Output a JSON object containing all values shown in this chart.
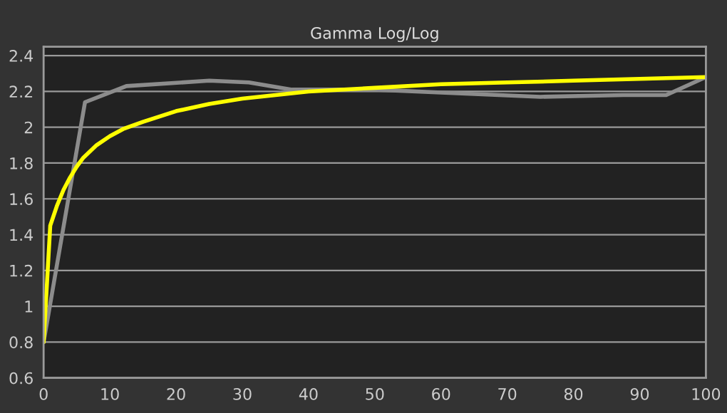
{
  "chart_data": {
    "type": "line",
    "title": "Gamma Log/Log",
    "xlim": [
      0,
      100
    ],
    "xticks": [
      0,
      10,
      20,
      30,
      40,
      50,
      60,
      70,
      80,
      90,
      100
    ],
    "ylim": [
      0.6,
      2.45
    ],
    "yticks": [
      0.6,
      0.8,
      1,
      1.2,
      1.4,
      1.6,
      1.8,
      2,
      2.2,
      2.4
    ],
    "grid": "y",
    "marker": "none",
    "line_style": "solid",
    "series": [
      {
        "color": "#8c8c8c",
        "x": [
          0,
          6.25,
          12.5,
          25,
          31,
          37.5,
          50,
          62.5,
          75,
          87.5,
          94,
          100
        ],
        "values": [
          0.8,
          2.14,
          2.23,
          2.26,
          2.25,
          2.21,
          2.21,
          2.19,
          2.17,
          2.18,
          2.18,
          2.28
        ]
      },
      {
        "color": "#ffff00",
        "x": [
          0,
          1,
          2,
          3,
          4,
          5,
          6,
          8,
          10,
          12,
          15,
          20,
          25,
          30,
          40,
          50,
          60,
          70,
          80,
          90,
          100
        ],
        "values": [
          0.8,
          1.45,
          1.56,
          1.65,
          1.72,
          1.78,
          1.83,
          1.9,
          1.95,
          1.99,
          2.03,
          2.09,
          2.13,
          2.16,
          2.2,
          2.22,
          2.24,
          2.25,
          2.26,
          2.27,
          2.28
        ]
      }
    ]
  }
}
